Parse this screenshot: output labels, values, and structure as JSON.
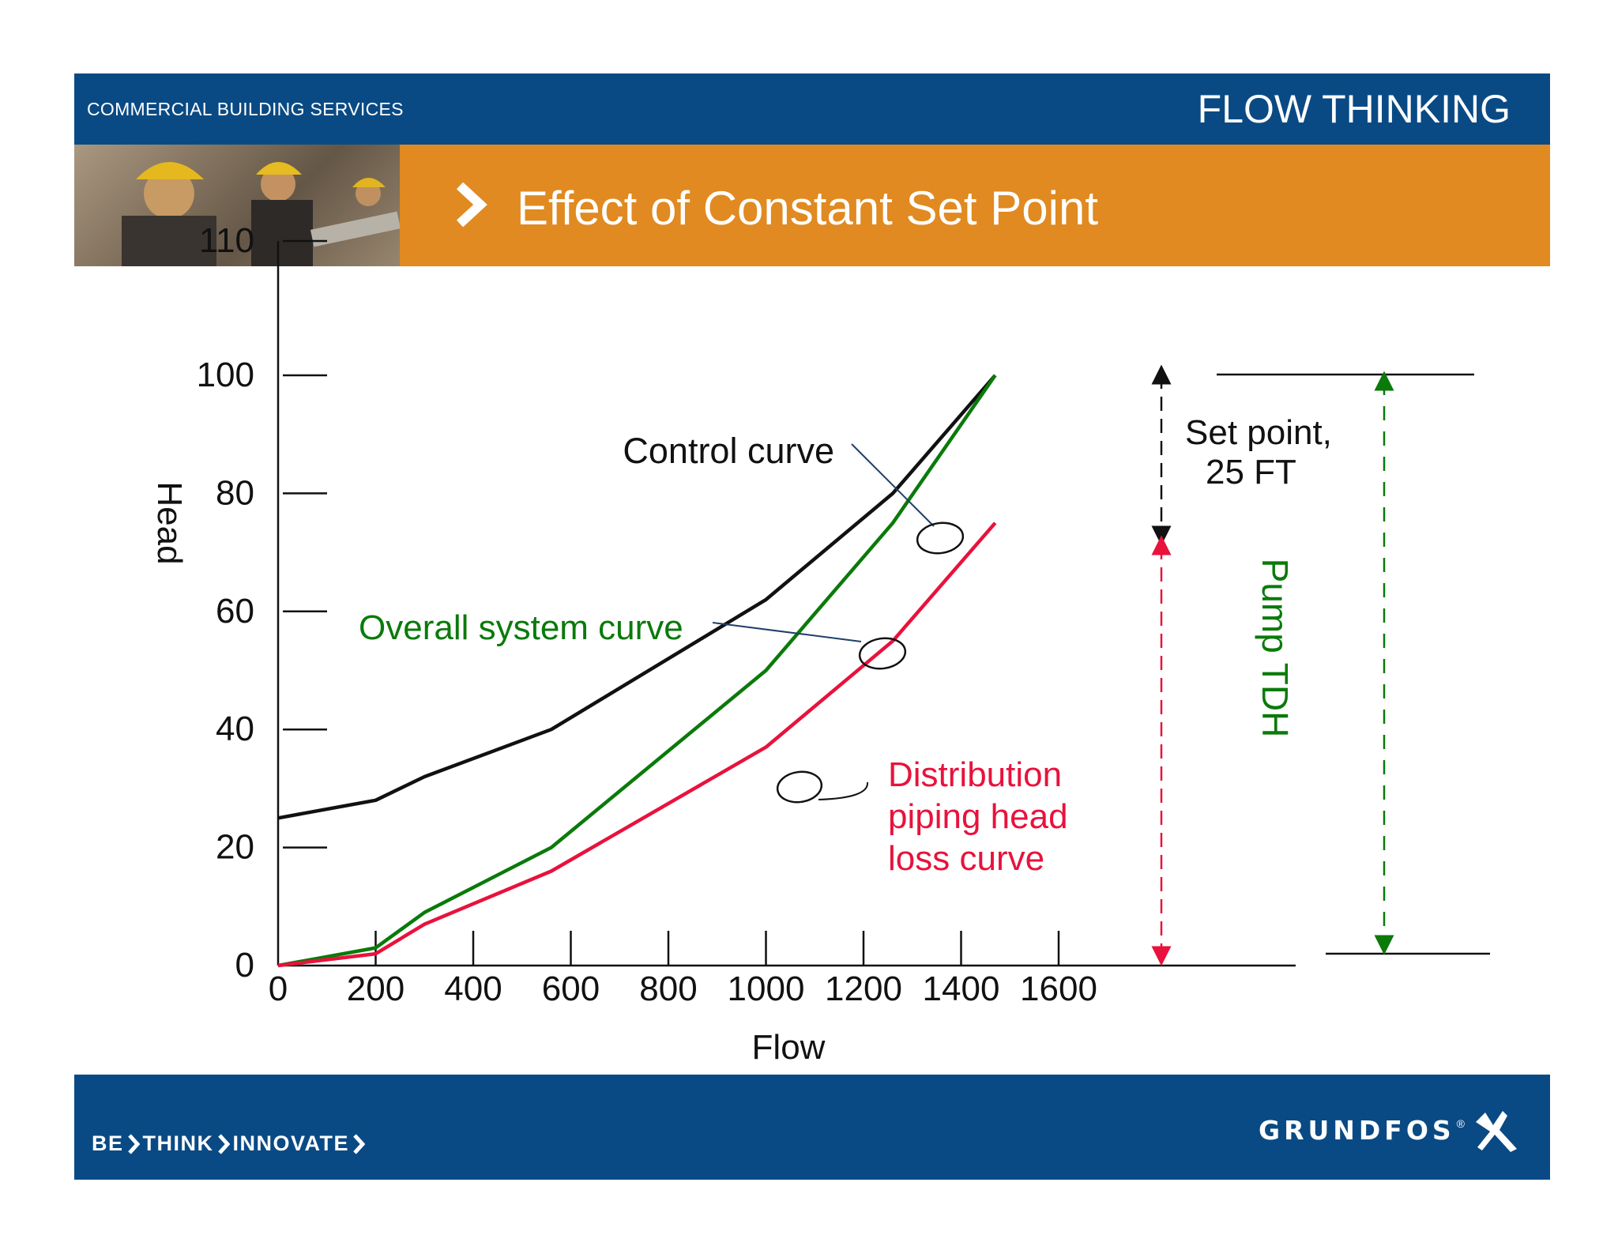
{
  "header": {
    "left_label": "COMMERCIAL BUILDING SERVICES",
    "right_label": "FLOW THINKING"
  },
  "title": "Effect of Constant Set Point",
  "footer": {
    "slogan": [
      "BE",
      "THINK",
      "INNOVATE"
    ],
    "brand": "GRUNDFOS",
    "brand_mark": "®"
  },
  "colors": {
    "header_blue": "#0a4a84",
    "title_orange": "#e08a21",
    "control_curve": "#111111",
    "system_curve": "#0a7a0a",
    "distribution_curve": "#e8123c"
  },
  "chart_data": {
    "type": "line",
    "xlabel": "Flow",
    "ylabel": "Head",
    "x_ticks": [
      0,
      200,
      400,
      600,
      800,
      1000,
      1200,
      1400,
      1600
    ],
    "y_ticks": [
      0,
      20,
      40,
      60,
      80,
      100,
      110
    ],
    "xlim": [
      0,
      1600
    ],
    "ylim": [
      0,
      110
    ],
    "grid": false,
    "series": [
      {
        "name": "Control curve",
        "color": "#111111",
        "points": [
          [
            0,
            25
          ],
          [
            200,
            28
          ],
          [
            300,
            32
          ],
          [
            560,
            40
          ],
          [
            1000,
            62
          ],
          [
            1260,
            80
          ],
          [
            1470,
            100
          ]
        ]
      },
      {
        "name": "Overall system curve",
        "color": "#0a7a0a",
        "points": [
          [
            0,
            0
          ],
          [
            200,
            3
          ],
          [
            300,
            9
          ],
          [
            560,
            20
          ],
          [
            1000,
            50
          ],
          [
            1260,
            75
          ],
          [
            1470,
            100
          ]
        ]
      },
      {
        "name": "Distribution piping head loss curve",
        "color": "#e8123c",
        "points": [
          [
            0,
            0
          ],
          [
            200,
            2
          ],
          [
            300,
            7
          ],
          [
            560,
            16
          ],
          [
            1000,
            37
          ],
          [
            1260,
            55
          ],
          [
            1470,
            75
          ]
        ]
      }
    ],
    "annotations": {
      "control_curve": "Control curve",
      "system_curve": "Overall system curve",
      "distribution": [
        "Distribution",
        "piping head",
        "loss curve"
      ],
      "set_point": [
        "Set point,",
        "25 FT"
      ],
      "pump_tdh": "Pump TDH"
    }
  }
}
